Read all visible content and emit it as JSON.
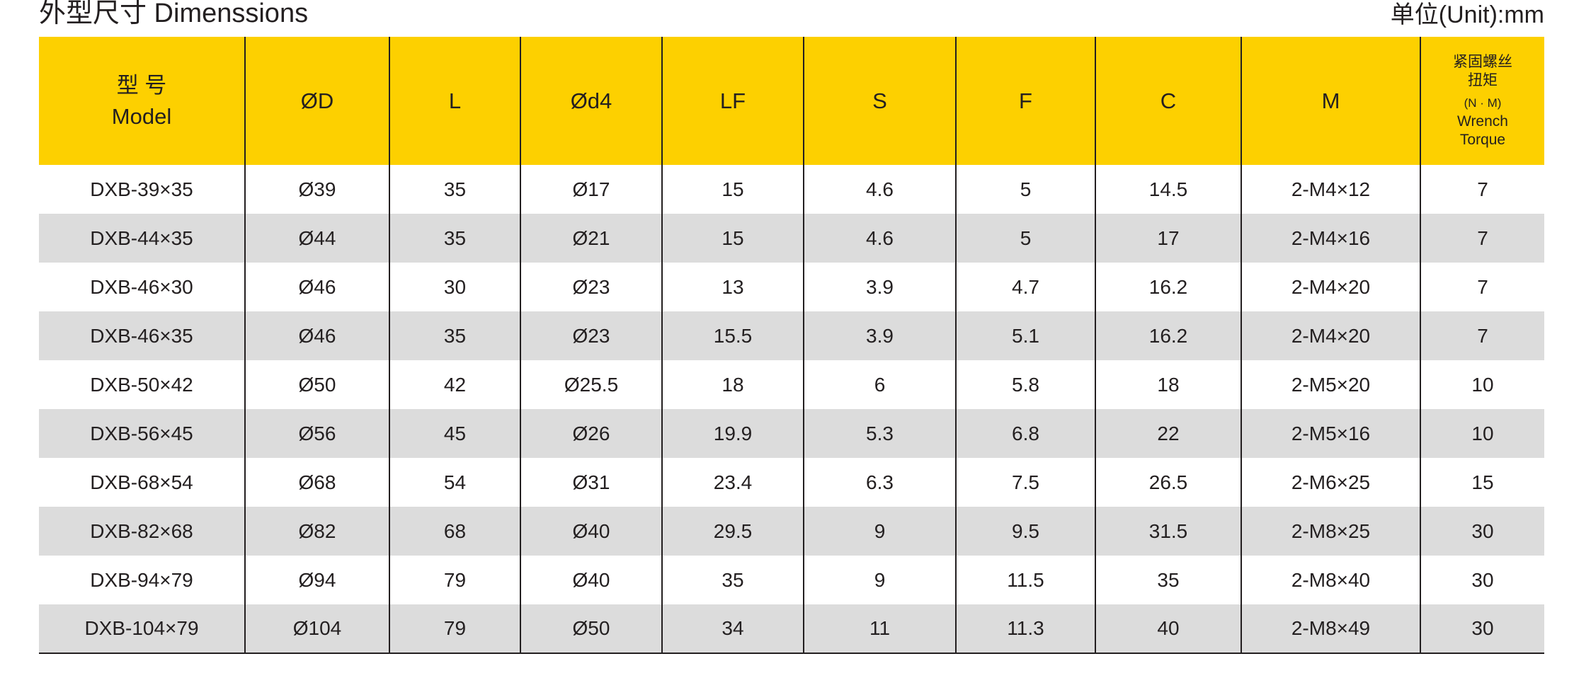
{
  "title": "外型尺寸 Dimenssions",
  "unit": "单位(Unit):mm",
  "colors": {
    "header_bg": "#fdd000",
    "stripe_bg": "#dcdcdc",
    "text": "#231f20"
  },
  "headers": {
    "model_cn": "型 号",
    "model_en": "Model",
    "cols": [
      "ØD",
      "L",
      "Ød4",
      "LF",
      "S",
      "F",
      "C",
      "M"
    ],
    "torque_cn1": "紧固螺丝",
    "torque_cn2": "扭矩",
    "torque_unit": "(N · M)",
    "torque_en1": "Wrench",
    "torque_en2": "Torque"
  },
  "rows": [
    [
      "DXB-39×35",
      "Ø39",
      "35",
      "Ø17",
      "15",
      "4.6",
      "5",
      "14.5",
      "2-M4×12",
      "7"
    ],
    [
      "DXB-44×35",
      "Ø44",
      "35",
      "Ø21",
      "15",
      "4.6",
      "5",
      "17",
      "2-M4×16",
      "7"
    ],
    [
      "DXB-46×30",
      "Ø46",
      "30",
      "Ø23",
      "13",
      "3.9",
      "4.7",
      "16.2",
      "2-M4×20",
      "7"
    ],
    [
      "DXB-46×35",
      "Ø46",
      "35",
      "Ø23",
      "15.5",
      "3.9",
      "5.1",
      "16.2",
      "2-M4×20",
      "7"
    ],
    [
      "DXB-50×42",
      "Ø50",
      "42",
      "Ø25.5",
      "18",
      "6",
      "5.8",
      "18",
      "2-M5×20",
      "10"
    ],
    [
      "DXB-56×45",
      "Ø56",
      "45",
      "Ø26",
      "19.9",
      "5.3",
      "6.8",
      "22",
      "2-M5×16",
      "10"
    ],
    [
      "DXB-68×54",
      "Ø68",
      "54",
      "Ø31",
      "23.4",
      "6.3",
      "7.5",
      "26.5",
      "2-M6×25",
      "15"
    ],
    [
      "DXB-82×68",
      "Ø82",
      "68",
      "Ø40",
      "29.5",
      "9",
      "9.5",
      "31.5",
      "2-M8×25",
      "30"
    ],
    [
      "DXB-94×79",
      "Ø94",
      "79",
      "Ø40",
      "35",
      "9",
      "11.5",
      "35",
      "2-M8×40",
      "30"
    ],
    [
      "DXB-104×79",
      "Ø104",
      "79",
      "Ø50",
      "34",
      "11",
      "11.3",
      "40",
      "2-M8×49",
      "30"
    ]
  ]
}
